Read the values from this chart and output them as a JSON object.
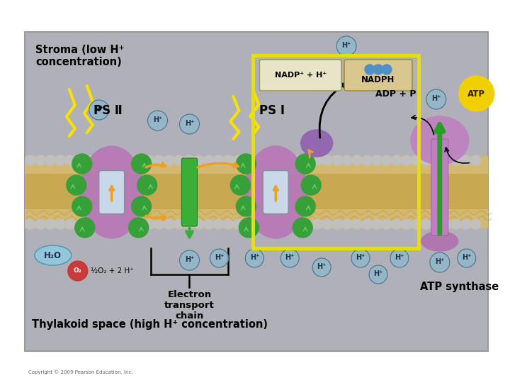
{
  "bg_outer": "#ffffff",
  "bg_diagram": "#b8b8c0",
  "bg_stroma": "#b8b8c0",
  "bg_lumen": "#c8a850",
  "membrane_color": "#d4b870",
  "membrane_beads": "#c0c0c0",
  "stroma_label": "Stroma (low H⁺\nconcentration)",
  "thylakoid_label": "Thylakoid space (high H⁺ concentration)",
  "electron_transport_label": "Electron\ntransport\nchain",
  "ps2_label": "PS Ⅱ",
  "ps1_label": "PS Ⅰ",
  "atp_synthase_label": "ATP synthase",
  "nadp_label": "NADP⁺ + H⁺",
  "nadph_label": "NADPH",
  "adp_label": "ADP + P",
  "atp_label": "ATP",
  "h2o_label": "H₂O",
  "o2_label": "½O₂ + 2 H⁺",
  "copyright": "Copyright © 2009 Pearson Education, Inc.",
  "purple_color": "#b878b8",
  "green_arrow_color": "#28a028",
  "orange_color": "#f0a020",
  "yellow_bolt_color": "#f8e000",
  "yellow_box_color": "#e8e000",
  "teal_color": "#70a8b8",
  "red_circle_color": "#cc3030",
  "nadph_tan": "#d8c890",
  "title_fontsize": 10,
  "label_fontsize": 10,
  "small_fontsize": 9
}
